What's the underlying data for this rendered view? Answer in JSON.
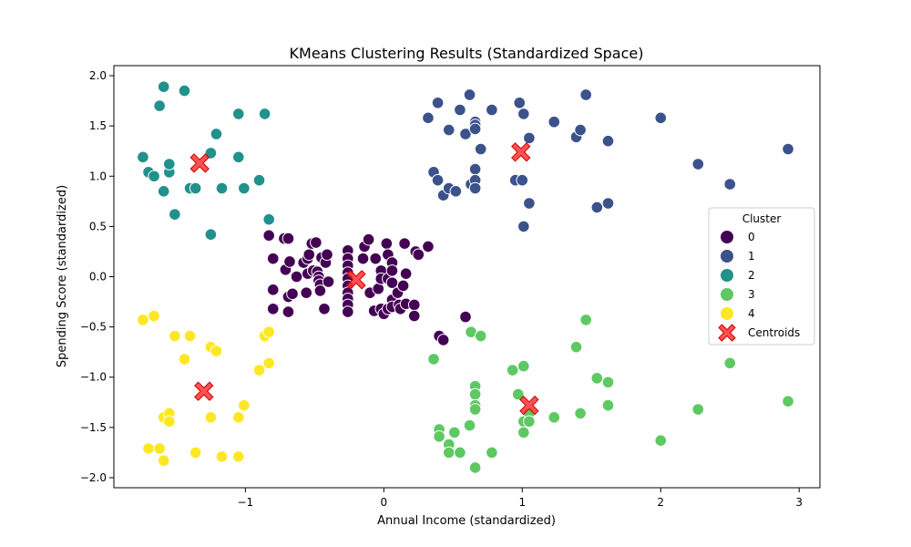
{
  "chart_data": {
    "type": "scatter",
    "title": "KMeans Clustering Results (Standardized Space)",
    "xlabel": "Annual Income (standardized)",
    "ylabel": "Spending Score (standardized)",
    "xlim": [
      -1.95,
      3.15
    ],
    "ylim": [
      -2.1,
      2.1
    ],
    "xticks": [
      -1,
      0,
      1,
      2,
      3
    ],
    "xtick_labels": [
      "−1",
      "0",
      "1",
      "2",
      "3"
    ],
    "yticks": [
      -2.0,
      -1.5,
      -1.0,
      -0.5,
      0.0,
      0.5,
      1.0,
      1.5,
      2.0
    ],
    "ytick_labels": [
      "−2.0",
      "−1.5",
      "−1.0",
      "−0.5",
      "0.0",
      "0.5",
      "1.0",
      "1.5",
      "2.0"
    ],
    "grid": false,
    "legend": {
      "title": "Cluster",
      "placement": "center-right"
    },
    "series": [
      {
        "name": "0",
        "color": "#440154",
        "points": [
          [
            -0.83,
            0.41
          ],
          [
            -0.8,
            0.18
          ],
          [
            -0.8,
            -0.13
          ],
          [
            -0.8,
            -0.32
          ],
          [
            -0.72,
            0.38
          ],
          [
            -0.71,
            0.07
          ],
          [
            -0.69,
            0.38
          ],
          [
            -0.69,
            -0.2
          ],
          [
            -0.69,
            -0.35
          ],
          [
            -0.68,
            0.15
          ],
          [
            -0.66,
            -0.17
          ],
          [
            -0.63,
            0.0
          ],
          [
            -0.58,
            0.14
          ],
          [
            -0.56,
            -0.16
          ],
          [
            -0.55,
            0.03
          ],
          [
            -0.55,
            0.18
          ],
          [
            -0.54,
            0.22
          ],
          [
            -0.52,
            0.33
          ],
          [
            -0.51,
            0.06
          ],
          [
            -0.49,
            0.34
          ],
          [
            -0.48,
            0.05
          ],
          [
            -0.47,
            0.0
          ],
          [
            -0.47,
            -0.04
          ],
          [
            -0.46,
            -0.08
          ],
          [
            -0.46,
            -0.14
          ],
          [
            -0.45,
            0.19
          ],
          [
            -0.43,
            -0.32
          ],
          [
            -0.42,
            0.14
          ],
          [
            -0.41,
            0.22
          ],
          [
            -0.4,
            -0.05
          ],
          [
            -0.26,
            0.26
          ],
          [
            -0.26,
            0.18
          ],
          [
            -0.26,
            0.11
          ],
          [
            -0.26,
            0.04
          ],
          [
            -0.26,
            -0.02
          ],
          [
            -0.26,
            -0.09
          ],
          [
            -0.26,
            -0.16
          ],
          [
            -0.26,
            -0.22
          ],
          [
            -0.26,
            -0.28
          ],
          [
            -0.26,
            -0.35
          ],
          [
            -0.15,
            0.18
          ],
          [
            -0.14,
            0.3
          ],
          [
            -0.11,
            0.37
          ],
          [
            -0.1,
            -0.16
          ],
          [
            -0.07,
            -0.34
          ],
          [
            -0.06,
            0.18
          ],
          [
            -0.04,
            -0.12
          ],
          [
            -0.02,
            0.06
          ],
          [
            -0.02,
            -0.02
          ],
          [
            -0.02,
            -0.32
          ],
          [
            0.0,
            -0.37
          ],
          [
            0.02,
            0.33
          ],
          [
            0.03,
            0.22
          ],
          [
            0.03,
            -0.02
          ],
          [
            0.03,
            -0.32
          ],
          [
            0.06,
            0.14
          ],
          [
            0.06,
            0.06
          ],
          [
            0.06,
            -0.06
          ],
          [
            0.06,
            -0.23
          ],
          [
            0.06,
            -0.3
          ],
          [
            0.1,
            -0.16
          ],
          [
            0.11,
            -0.28
          ],
          [
            0.12,
            -0.32
          ],
          [
            0.14,
            -0.09
          ],
          [
            0.15,
            0.33
          ],
          [
            0.16,
            0.03
          ],
          [
            0.16,
            -0.27
          ],
          [
            0.22,
            -0.28
          ],
          [
            0.22,
            -0.39
          ],
          [
            0.23,
            0.25
          ],
          [
            0.25,
            0.22
          ],
          [
            0.32,
            0.3
          ],
          [
            0.4,
            -0.59
          ],
          [
            0.43,
            -0.63
          ],
          [
            0.59,
            -0.4
          ]
        ]
      },
      {
        "name": "1",
        "color": "#3b528b",
        "points": [
          [
            0.32,
            1.58
          ],
          [
            0.36,
            1.04
          ],
          [
            0.39,
            1.73
          ],
          [
            0.39,
            0.96
          ],
          [
            0.43,
            0.81
          ],
          [
            0.47,
            1.46
          ],
          [
            0.47,
            0.88
          ],
          [
            0.52,
            0.85
          ],
          [
            0.55,
            1.66
          ],
          [
            0.59,
            1.42
          ],
          [
            0.62,
            1.81
          ],
          [
            0.63,
            0.92
          ],
          [
            0.66,
            1.54
          ],
          [
            0.66,
            1.51
          ],
          [
            0.66,
            1.47
          ],
          [
            0.66,
            1.07
          ],
          [
            0.66,
            0.96
          ],
          [
            0.66,
            0.88
          ],
          [
            0.7,
            1.27
          ],
          [
            0.78,
            1.66
          ],
          [
            0.95,
            0.96
          ],
          [
            0.98,
            1.73
          ],
          [
            1.0,
            0.96
          ],
          [
            1.01,
            1.62
          ],
          [
            1.01,
            0.5
          ],
          [
            1.05,
            1.38
          ],
          [
            1.05,
            0.73
          ],
          [
            1.23,
            1.54
          ],
          [
            1.39,
            1.39
          ],
          [
            1.42,
            1.46
          ],
          [
            1.46,
            1.81
          ],
          [
            1.54,
            0.69
          ],
          [
            1.62,
            1.35
          ],
          [
            1.62,
            0.73
          ],
          [
            2.0,
            1.58
          ],
          [
            2.27,
            1.12
          ],
          [
            2.5,
            0.92
          ],
          [
            2.92,
            1.27
          ]
        ]
      },
      {
        "name": "2",
        "color": "#21918c",
        "points": [
          [
            -1.74,
            1.19
          ],
          [
            -1.7,
            1.04
          ],
          [
            -1.66,
            1.0
          ],
          [
            -1.62,
            1.7
          ],
          [
            -1.59,
            1.89
          ],
          [
            -1.59,
            0.85
          ],
          [
            -1.55,
            1.04
          ],
          [
            -1.55,
            1.12
          ],
          [
            -1.51,
            0.62
          ],
          [
            -1.44,
            1.85
          ],
          [
            -1.4,
            0.88
          ],
          [
            -1.36,
            0.88
          ],
          [
            -1.25,
            1.23
          ],
          [
            -1.25,
            0.42
          ],
          [
            -1.21,
            1.42
          ],
          [
            -1.17,
            0.88
          ],
          [
            -1.05,
            1.62
          ],
          [
            -1.05,
            1.19
          ],
          [
            -1.01,
            0.88
          ],
          [
            -0.9,
            0.96
          ],
          [
            -0.86,
            1.62
          ],
          [
            -0.83,
            0.57
          ]
        ]
      },
      {
        "name": "3",
        "color": "#5ec962",
        "points": [
          [
            0.36,
            -0.82
          ],
          [
            0.4,
            -1.52
          ],
          [
            0.4,
            -1.59
          ],
          [
            0.47,
            -1.67
          ],
          [
            0.47,
            -1.75
          ],
          [
            0.51,
            -1.55
          ],
          [
            0.55,
            -1.75
          ],
          [
            0.62,
            -1.48
          ],
          [
            0.63,
            -0.55
          ],
          [
            0.66,
            -1.09
          ],
          [
            0.66,
            -1.17
          ],
          [
            0.66,
            -1.28
          ],
          [
            0.66,
            -1.32
          ],
          [
            0.66,
            -1.9
          ],
          [
            0.7,
            -0.59
          ],
          [
            0.78,
            -1.75
          ],
          [
            0.93,
            -0.93
          ],
          [
            0.97,
            -1.17
          ],
          [
            1.01,
            -0.89
          ],
          [
            1.01,
            -1.44
          ],
          [
            1.01,
            -1.55
          ],
          [
            1.05,
            -1.36
          ],
          [
            1.05,
            -1.44
          ],
          [
            1.23,
            -1.4
          ],
          [
            1.39,
            -0.7
          ],
          [
            1.42,
            -1.36
          ],
          [
            1.46,
            -0.43
          ],
          [
            1.54,
            -1.01
          ],
          [
            1.62,
            -1.05
          ],
          [
            1.62,
            -1.28
          ],
          [
            2.0,
            -1.63
          ],
          [
            2.27,
            -1.32
          ],
          [
            2.5,
            -0.86
          ],
          [
            2.92,
            -1.24
          ]
        ]
      },
      {
        "name": "4",
        "color": "#fde725",
        "points": [
          [
            -1.74,
            -0.43
          ],
          [
            -1.7,
            -1.71
          ],
          [
            -1.66,
            -0.39
          ],
          [
            -1.62,
            -1.71
          ],
          [
            -1.59,
            -1.4
          ],
          [
            -1.59,
            -1.83
          ],
          [
            -1.55,
            -1.36
          ],
          [
            -1.55,
            -1.44
          ],
          [
            -1.51,
            -0.59
          ],
          [
            -1.44,
            -0.82
          ],
          [
            -1.4,
            -0.59
          ],
          [
            -1.36,
            -1.75
          ],
          [
            -1.25,
            -0.7
          ],
          [
            -1.25,
            -1.4
          ],
          [
            -1.21,
            -0.74
          ],
          [
            -1.17,
            -1.79
          ],
          [
            -1.05,
            -1.4
          ],
          [
            -1.05,
            -1.79
          ],
          [
            -1.01,
            -1.28
          ],
          [
            -0.9,
            -0.93
          ],
          [
            -0.86,
            -0.59
          ],
          [
            -0.83,
            -0.55
          ],
          [
            -0.83,
            -0.86
          ]
        ]
      }
    ],
    "centroids": {
      "name": "Centroids",
      "color": "#ff3333",
      "points": [
        [
          -0.2,
          -0.03
        ],
        [
          0.99,
          1.24
        ],
        [
          -1.33,
          1.13
        ],
        [
          1.05,
          -1.28
        ],
        [
          -1.3,
          -1.14
        ]
      ]
    }
  }
}
